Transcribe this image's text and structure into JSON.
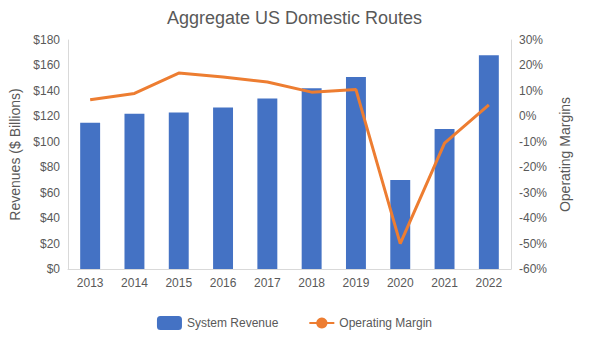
{
  "chart_data": {
    "type": "bar",
    "title": "Aggregate US Domestic Routes",
    "categories": [
      "2013",
      "2014",
      "2015",
      "2016",
      "2017",
      "2018",
      "2019",
      "2020",
      "2021",
      "2022"
    ],
    "series": [
      {
        "name": "System Revenue",
        "type": "bar",
        "color": "#4472c4",
        "values": [
          115,
          122,
          123,
          127,
          134,
          142,
          151,
          70,
          110,
          168
        ]
      },
      {
        "name": "Operating Margin",
        "type": "line",
        "color": "#ed7d31",
        "axis": "y2",
        "values": [
          6.5,
          9,
          17,
          15.5,
          13.5,
          9.5,
          10.5,
          -50,
          -10.5,
          4.5
        ]
      }
    ],
    "y_label": "Revenues ($ Billions)",
    "y2_label": "Operating Margins",
    "ylim": [
      0,
      180
    ],
    "yticks": [
      {
        "value": 0,
        "label": "$0"
      },
      {
        "value": 20,
        "label": "$20"
      },
      {
        "value": 40,
        "label": "$40"
      },
      {
        "value": 60,
        "label": "$60"
      },
      {
        "value": 80,
        "label": "$80"
      },
      {
        "value": 100,
        "label": "$100"
      },
      {
        "value": 120,
        "label": "$120"
      },
      {
        "value": 140,
        "label": "$140"
      },
      {
        "value": 160,
        "label": "$160"
      },
      {
        "value": 180,
        "label": "$180"
      }
    ],
    "y2lim": [
      -60,
      30
    ],
    "y2ticks": [
      {
        "value": -60,
        "label": "-60%"
      },
      {
        "value": -50,
        "label": "-50%"
      },
      {
        "value": -40,
        "label": "-40%"
      },
      {
        "value": -30,
        "label": "-30%"
      },
      {
        "value": -20,
        "label": "-20%"
      },
      {
        "value": -10,
        "label": "-10%"
      },
      {
        "value": 0,
        "label": "0%"
      },
      {
        "value": 10,
        "label": "10%"
      },
      {
        "value": 20,
        "label": "20%"
      },
      {
        "value": 30,
        "label": "30%"
      }
    ],
    "grid": false,
    "legend": "bottom"
  }
}
